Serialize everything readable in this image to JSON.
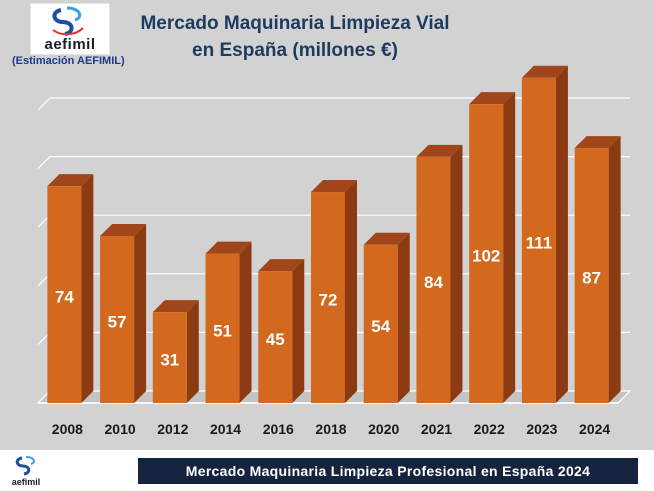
{
  "header": {
    "title_line1": "Mercado Maquinaria Limpieza Vial",
    "title_line2": "en España (millones €)",
    "logo_text": "aefimil",
    "estimation_note": "(Estimación AEFIMIL)"
  },
  "footer": {
    "logo_text": "aefimil",
    "banner_text": "Mercado Maquinaria Limpieza Profesional en España 2024"
  },
  "colors": {
    "bar_front": "#d2691e",
    "bar_top": "#a0461a",
    "bar_side": "#8b3a12",
    "background": "#d2d2d2",
    "title": "#1f3a5f",
    "banner": "#15233f"
  },
  "chart_data": {
    "type": "bar",
    "title": "Mercado Maquinaria Limpieza Vial en España (millones €)",
    "categories": [
      "2008",
      "2010",
      "2012",
      "2014",
      "2016",
      "2018",
      "2020",
      "2021",
      "2022",
      "2023",
      "2024"
    ],
    "values": [
      74,
      57,
      31,
      51,
      45,
      72,
      54,
      84,
      102,
      111,
      87
    ],
    "xlabel": "",
    "ylabel": "",
    "ylim": [
      0,
      120
    ],
    "grid": true,
    "data_labels": true
  }
}
